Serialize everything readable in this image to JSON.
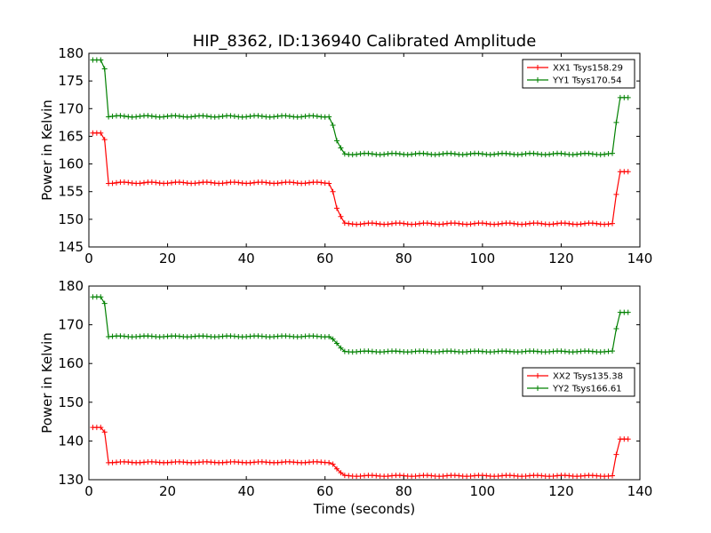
{
  "chart_data": {
    "title": "HIP_8362, ID:136940 Calibrated Amplitude",
    "xlabel": "Time (seconds)",
    "charts": [
      {
        "type": "line",
        "ylabel": "Power in Kelvin",
        "xlim": [
          0,
          140
        ],
        "ylim": [
          145,
          180
        ],
        "xticks": [
          "0",
          "20",
          "40",
          "60",
          "80",
          "100",
          "120",
          "140"
        ],
        "yticks": [
          "145",
          "150",
          "155",
          "160",
          "165",
          "170",
          "175",
          "180"
        ],
        "legend_position": "top-right",
        "series": [
          {
            "name": "XX1 Tsys158.29",
            "color": "#ff0000",
            "segments": [
              {
                "x_start": 1,
                "x_end": 3,
                "y": 165.6
              },
              {
                "x_start": 4,
                "x_end": 4,
                "y": 164.4
              },
              {
                "x_start": 5,
                "x_end": 61,
                "y": 156.6
              },
              {
                "x_start": 62,
                "x_end": 62,
                "y": 155.0
              },
              {
                "x_start": 63,
                "x_end": 63,
                "y": 152.0
              },
              {
                "x_start": 64,
                "x_end": 64,
                "y": 150.5
              },
              {
                "x_start": 65,
                "x_end": 133,
                "y": 149.2
              },
              {
                "x_start": 134,
                "x_end": 134,
                "y": 154.5
              },
              {
                "x_start": 135,
                "x_end": 137,
                "y": 158.6
              }
            ]
          },
          {
            "name": "YY1 Tsys170.54",
            "color": "#008000",
            "segments": [
              {
                "x_start": 1,
                "x_end": 3,
                "y": 178.8
              },
              {
                "x_start": 4,
                "x_end": 4,
                "y": 177.2
              },
              {
                "x_start": 5,
                "x_end": 61,
                "y": 168.6
              },
              {
                "x_start": 62,
                "x_end": 62,
                "y": 167.0
              },
              {
                "x_start": 63,
                "x_end": 63,
                "y": 164.2
              },
              {
                "x_start": 64,
                "x_end": 64,
                "y": 162.9
              },
              {
                "x_start": 65,
                "x_end": 133,
                "y": 161.8
              },
              {
                "x_start": 134,
                "x_end": 134,
                "y": 167.5
              },
              {
                "x_start": 135,
                "x_end": 137,
                "y": 172.0
              }
            ]
          }
        ]
      },
      {
        "type": "line",
        "ylabel": "Power in Kelvin",
        "xlim": [
          0,
          140
        ],
        "ylim": [
          130,
          180
        ],
        "xticks": [
          "0",
          "20",
          "40",
          "60",
          "80",
          "100",
          "120",
          "140"
        ],
        "yticks": [
          "130",
          "140",
          "150",
          "160",
          "170",
          "180"
        ],
        "legend_position": "center-right",
        "series": [
          {
            "name": "XX2 Tsys135.38",
            "color": "#ff0000",
            "segments": [
              {
                "x_start": 1,
                "x_end": 3,
                "y": 143.5
              },
              {
                "x_start": 4,
                "x_end": 4,
                "y": 142.3
              },
              {
                "x_start": 5,
                "x_end": 61,
                "y": 134.5
              },
              {
                "x_start": 62,
                "x_end": 62,
                "y": 134.0
              },
              {
                "x_start": 63,
                "x_end": 63,
                "y": 132.8
              },
              {
                "x_start": 64,
                "x_end": 64,
                "y": 131.8
              },
              {
                "x_start": 65,
                "x_end": 133,
                "y": 131.0
              },
              {
                "x_start": 134,
                "x_end": 134,
                "y": 136.5
              },
              {
                "x_start": 135,
                "x_end": 137,
                "y": 140.5
              }
            ]
          },
          {
            "name": "YY2 Tsys166.61",
            "color": "#008000",
            "segments": [
              {
                "x_start": 1,
                "x_end": 3,
                "y": 177.2
              },
              {
                "x_start": 4,
                "x_end": 4,
                "y": 175.5
              },
              {
                "x_start": 5,
                "x_end": 61,
                "y": 167.0
              },
              {
                "x_start": 62,
                "x_end": 62,
                "y": 166.3
              },
              {
                "x_start": 63,
                "x_end": 63,
                "y": 165.2
              },
              {
                "x_start": 64,
                "x_end": 64,
                "y": 164.0
              },
              {
                "x_start": 65,
                "x_end": 133,
                "y": 163.1
              },
              {
                "x_start": 134,
                "x_end": 134,
                "y": 169.0
              },
              {
                "x_start": 135,
                "x_end": 137,
                "y": 173.2
              }
            ]
          }
        ]
      }
    ]
  }
}
